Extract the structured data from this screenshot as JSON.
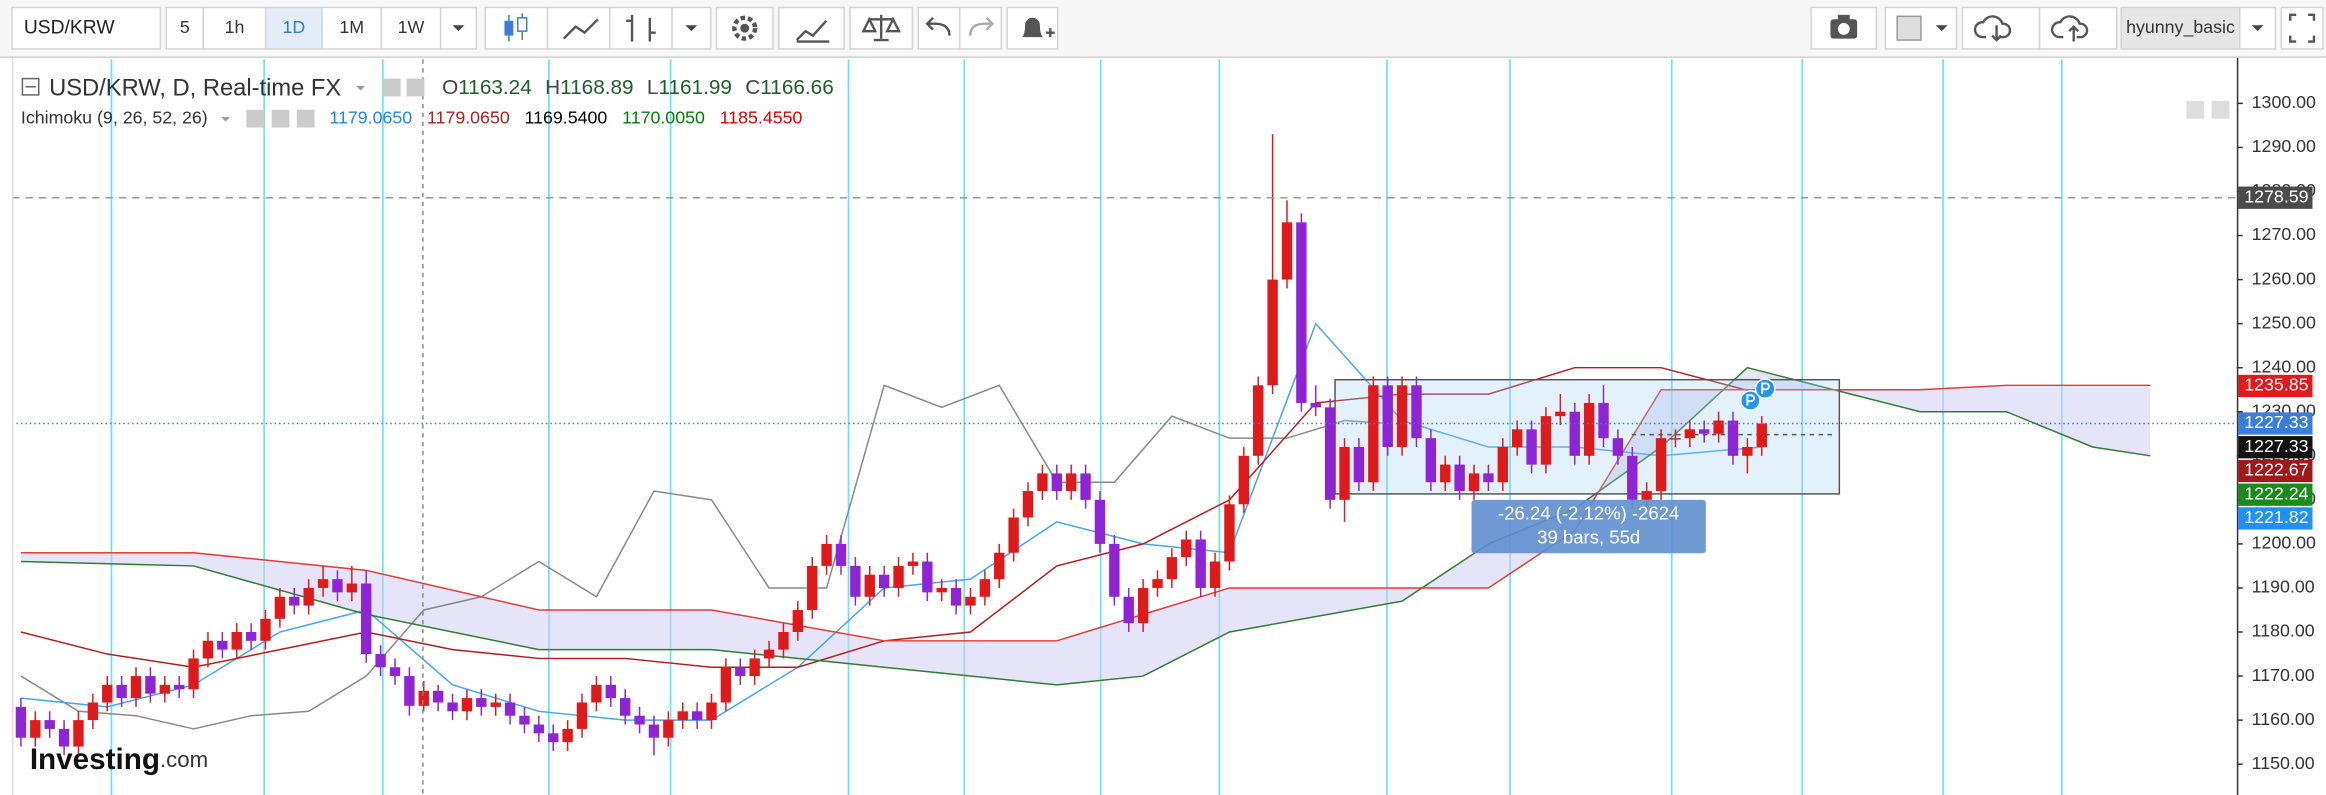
{
  "toolbar": {
    "symbol": "USD/KRW",
    "intervals": [
      "5",
      "1h",
      "1D",
      "1M",
      "1W"
    ],
    "user": "hyunny_basic"
  },
  "legend": {
    "title": "USD/KRW, D, Real-time FX",
    "ohlc": [
      {
        "key": "O",
        "value": "1163.24"
      },
      {
        "key": "H",
        "value": "1168.89"
      },
      {
        "key": "L",
        "value": "1161.99"
      },
      {
        "key": "C",
        "value": "1166.66"
      }
    ]
  },
  "indicator": {
    "name": "Ichimoku (9, 26, 52, 26)",
    "values": [
      {
        "text": "1179.0650",
        "color": "#1e88e5"
      },
      {
        "text": "1179.0650",
        "color": "#b71c1c"
      },
      {
        "text": "1169.5400",
        "color": "#000000"
      },
      {
        "text": "1170.0050",
        "color": "#008000"
      },
      {
        "text": "1185.4550",
        "color": "#e00000"
      }
    ]
  },
  "measure": {
    "change": "-26.24 (-2.12%) -2624",
    "span": "39 bars, 55d"
  },
  "logo": {
    "brand": "Investing",
    "suffix": ".com"
  },
  "chart_data": {
    "type": "candlestick",
    "up_color": "#e0191b",
    "down_color": "#8e24d6",
    "ylim": [
      1143,
      1310
    ],
    "yticks": [
      {
        "value": 1150,
        "label": "1150.00"
      },
      {
        "value": 1160,
        "label": "1160.00"
      },
      {
        "value": 1170,
        "label": "1170.00"
      },
      {
        "value": 1180,
        "label": "1180.00"
      },
      {
        "value": 1190,
        "label": "1190.00"
      },
      {
        "value": 1200,
        "label": "1200.00"
      },
      {
        "value": 1210,
        "label": "1210.00"
      },
      {
        "value": 1220,
        "label": "1220.00"
      },
      {
        "value": 1230,
        "label": "1230.00"
      },
      {
        "value": 1240,
        "label": "1240.00"
      },
      {
        "value": 1250,
        "label": "1250.00"
      },
      {
        "value": 1260,
        "label": "1260.00"
      },
      {
        "value": 1270,
        "label": "1270.00"
      },
      {
        "value": 1280,
        "label": "1280.00"
      },
      {
        "value": 1290,
        "label": "1290.00"
      },
      {
        "value": 1300,
        "label": "1300.00"
      }
    ],
    "grid": false,
    "candles": [
      [
        1163,
        1165,
        1154,
        1156
      ],
      [
        1156,
        1162,
        1154,
        1160
      ],
      [
        1160,
        1162,
        1156,
        1158
      ],
      [
        1158,
        1160,
        1152,
        1154
      ],
      [
        1154,
        1162,
        1152,
        1160
      ],
      [
        1160,
        1166,
        1158,
        1164
      ],
      [
        1164,
        1170,
        1162,
        1168
      ],
      [
        1168,
        1170,
        1163,
        1165
      ],
      [
        1165,
        1172,
        1163,
        1170
      ],
      [
        1170,
        1172,
        1164,
        1166
      ],
      [
        1166,
        1170,
        1164,
        1168
      ],
      [
        1168,
        1170,
        1165,
        1167
      ],
      [
        1167,
        1176,
        1165,
        1174
      ],
      [
        1174,
        1180,
        1172,
        1178
      ],
      [
        1178,
        1180,
        1174,
        1176
      ],
      [
        1176,
        1182,
        1174,
        1180
      ],
      [
        1180,
        1182,
        1176,
        1178
      ],
      [
        1178,
        1185,
        1176,
        1183
      ],
      [
        1183,
        1190,
        1181,
        1188
      ],
      [
        1188,
        1190,
        1184,
        1186
      ],
      [
        1186,
        1192,
        1184,
        1190
      ],
      [
        1190,
        1195,
        1188,
        1192
      ],
      [
        1192,
        1194,
        1187,
        1189
      ],
      [
        1189,
        1195,
        1187,
        1191
      ],
      [
        1191,
        1194,
        1173,
        1175
      ],
      [
        1175,
        1177,
        1170,
        1172
      ],
      [
        1172,
        1174,
        1168,
        1170
      ],
      [
        1170,
        1172,
        1161,
        1163.24
      ],
      [
        1163.24,
        1168.89,
        1161.99,
        1166.66
      ],
      [
        1166.66,
        1168,
        1162,
        1164
      ],
      [
        1164,
        1166,
        1160,
        1162
      ],
      [
        1162,
        1167,
        1160,
        1165
      ],
      [
        1165,
        1167,
        1161,
        1163
      ],
      [
        1163,
        1166,
        1161,
        1164
      ],
      [
        1164,
        1166,
        1159,
        1161
      ],
      [
        1161,
        1163,
        1157,
        1159
      ],
      [
        1159,
        1161,
        1155,
        1157
      ],
      [
        1157,
        1159,
        1153,
        1155
      ],
      [
        1155,
        1160,
        1153,
        1158
      ],
      [
        1158,
        1166,
        1156,
        1164
      ],
      [
        1164,
        1170,
        1162,
        1168
      ],
      [
        1168,
        1170,
        1163,
        1165
      ],
      [
        1165,
        1167,
        1159,
        1161
      ],
      [
        1161,
        1163,
        1157,
        1159
      ],
      [
        1159,
        1161,
        1152,
        1156
      ],
      [
        1156,
        1162,
        1154,
        1160
      ],
      [
        1160,
        1164,
        1158,
        1162
      ],
      [
        1162,
        1164,
        1158,
        1160
      ],
      [
        1160,
        1166,
        1158,
        1164
      ],
      [
        1164,
        1174,
        1162,
        1172
      ],
      [
        1172,
        1174,
        1168,
        1170
      ],
      [
        1170,
        1176,
        1168,
        1174
      ],
      [
        1174,
        1178,
        1172,
        1176
      ],
      [
        1176,
        1182,
        1174,
        1180
      ],
      [
        1180,
        1187,
        1178,
        1185
      ],
      [
        1185,
        1197,
        1183,
        1195
      ],
      [
        1195,
        1202,
        1193,
        1200
      ],
      [
        1200,
        1202,
        1193,
        1195
      ],
      [
        1195,
        1197,
        1186,
        1188
      ],
      [
        1188,
        1195,
        1186,
        1193
      ],
      [
        1193,
        1195,
        1188,
        1190
      ],
      [
        1190,
        1197,
        1188,
        1195
      ],
      [
        1195,
        1198,
        1193,
        1196
      ],
      [
        1196,
        1198,
        1187,
        1189
      ],
      [
        1189,
        1192,
        1187,
        1190
      ],
      [
        1190,
        1192,
        1184,
        1186
      ],
      [
        1186,
        1190,
        1184,
        1188
      ],
      [
        1188,
        1194,
        1186,
        1192
      ],
      [
        1192,
        1200,
        1190,
        1198
      ],
      [
        1198,
        1208,
        1196,
        1206
      ],
      [
        1206,
        1214,
        1204,
        1212
      ],
      [
        1212,
        1218,
        1210,
        1216
      ],
      [
        1216,
        1218,
        1210,
        1212
      ],
      [
        1212,
        1218,
        1210,
        1216
      ],
      [
        1216,
        1218,
        1208,
        1210
      ],
      [
        1210,
        1212,
        1198,
        1200
      ],
      [
        1200,
        1202,
        1186,
        1188
      ],
      [
        1188,
        1190,
        1180,
        1182
      ],
      [
        1182,
        1192,
        1180,
        1190
      ],
      [
        1190,
        1194,
        1188,
        1192
      ],
      [
        1192,
        1199,
        1190,
        1197
      ],
      [
        1197,
        1203,
        1195,
        1201
      ],
      [
        1201,
        1203,
        1188,
        1190
      ],
      [
        1190,
        1198,
        1188,
        1196
      ],
      [
        1196,
        1211,
        1194,
        1209
      ],
      [
        1209,
        1222,
        1207,
        1220
      ],
      [
        1220,
        1238,
        1218,
        1236
      ],
      [
        1236,
        1293,
        1234,
        1260
      ],
      [
        1260,
        1278,
        1258,
        1273
      ],
      [
        1273,
        1275,
        1230,
        1232
      ],
      [
        1232,
        1236,
        1229,
        1231
      ],
      [
        1231,
        1233,
        1208,
        1210
      ],
      [
        1210,
        1224,
        1205,
        1222
      ],
      [
        1222,
        1224,
        1212,
        1214
      ],
      [
        1214,
        1238,
        1212,
        1236
      ],
      [
        1236,
        1238,
        1220,
        1222
      ],
      [
        1222,
        1238,
        1220,
        1236
      ],
      [
        1236,
        1238,
        1222,
        1224
      ],
      [
        1224,
        1226,
        1212,
        1214
      ],
      [
        1214,
        1220,
        1212,
        1218
      ],
      [
        1218,
        1220,
        1210,
        1212
      ],
      [
        1212,
        1218,
        1210,
        1216
      ],
      [
        1216,
        1218,
        1212,
        1214
      ],
      [
        1214,
        1224,
        1212,
        1222
      ],
      [
        1222,
        1228,
        1220,
        1226
      ],
      [
        1226,
        1228,
        1216,
        1218
      ],
      [
        1218,
        1231,
        1216,
        1229
      ],
      [
        1229,
        1234,
        1227,
        1230
      ],
      [
        1230,
        1232,
        1218,
        1220
      ],
      [
        1220,
        1234,
        1218,
        1232
      ],
      [
        1232,
        1236,
        1222,
        1224
      ],
      [
        1224,
        1226,
        1218,
        1220
      ],
      [
        1220,
        1222,
        1208,
        1210
      ],
      [
        1210,
        1214,
        1208,
        1212
      ],
      [
        1212,
        1226,
        1210,
        1224
      ],
      [
        1224,
        1226,
        1222,
        1224
      ],
      [
        1224,
        1228,
        1222,
        1226
      ],
      [
        1226,
        1228,
        1223,
        1225
      ],
      [
        1225,
        1230,
        1223,
        1228
      ],
      [
        1228,
        1230,
        1218,
        1220
      ],
      [
        1220,
        1224,
        1216,
        1222
      ],
      [
        1222,
        1229,
        1220,
        1227.33
      ]
    ],
    "ichimoku": [
      {
        "name": "Chikou",
        "color": "#888888",
        "x": [
          0,
          4,
          8,
          12,
          16,
          20,
          24,
          28,
          32,
          36,
          40,
          44,
          48,
          52,
          56,
          60,
          64,
          68,
          72,
          76,
          80,
          84,
          88,
          92,
          95
        ],
        "values": [
          1170,
          1162,
          1161,
          1158,
          1161,
          1162,
          1170,
          1185,
          1188,
          1196,
          1188,
          1212,
          1210,
          1190,
          1190,
          1236,
          1231,
          1236,
          1214,
          1214,
          1229,
          1224,
          1224,
          1228,
          1227.33
        ]
      },
      {
        "name": "Tenkan",
        "color": "#42a5f5",
        "x": [
          0,
          6,
          12,
          18,
          24,
          30,
          36,
          42,
          48,
          54,
          60,
          66,
          72,
          78,
          84,
          90,
          96,
          102,
          108,
          114,
          121
        ],
        "values": [
          1165,
          1163,
          1168,
          1180,
          1185,
          1168,
          1162,
          1160,
          1160,
          1172,
          1190,
          1192,
          1205,
          1200,
          1198,
          1250,
          1228,
          1222,
          1222,
          1220,
          1222
        ]
      },
      {
        "name": "Kijun",
        "color": "#b71c1c",
        "x": [
          0,
          6,
          12,
          18,
          24,
          30,
          36,
          42,
          48,
          54,
          60,
          66,
          72,
          78,
          84,
          90,
          96,
          102,
          108,
          114,
          121
        ],
        "values": [
          1180,
          1175,
          1172,
          1176,
          1180,
          1176,
          1174,
          1174,
          1172,
          1172,
          1178,
          1180,
          1195,
          1200,
          1210,
          1232,
          1234,
          1234,
          1240,
          1240,
          1234
        ]
      },
      {
        "name": "Span A",
        "color": "#2e7d32",
        "x": [
          0,
          12,
          24,
          36,
          48,
          60,
          72,
          78,
          84,
          96,
          102,
          108,
          114,
          120,
          126,
          132,
          138,
          144,
          148
        ],
        "values": [
          1196,
          1195,
          1184,
          1176,
          1176,
          1172,
          1168,
          1170,
          1180,
          1187,
          1200,
          1208,
          1222,
          1240,
          1235,
          1230,
          1230,
          1222,
          1220
        ]
      },
      {
        "name": "Span B",
        "color": "#e53935",
        "x": [
          0,
          12,
          24,
          36,
          48,
          60,
          72,
          84,
          96,
          102,
          108,
          114,
          120,
          126,
          132,
          138,
          148
        ],
        "values": [
          1198,
          1198,
          1194,
          1185,
          1185,
          1178,
          1178,
          1190,
          1190,
          1190,
          1203,
          1235,
          1235,
          1235,
          1235,
          1236,
          1236
        ]
      }
    ],
    "price_badges": [
      {
        "value": 1278.59,
        "color": "#4a4a4a",
        "line": "dashed"
      },
      {
        "value": 1235.85,
        "color": "#e0191b"
      },
      {
        "value": 1227.33,
        "color": "#3b7ddd",
        "line": "dotted"
      },
      {
        "value": 1227.33,
        "color": "#111111"
      },
      {
        "value": 1222.67,
        "color": "#a01818"
      },
      {
        "value": 1222.24,
        "color": "#1b8a1b"
      },
      {
        "value": 1221.82,
        "color": "#1e90ff"
      }
    ]
  }
}
